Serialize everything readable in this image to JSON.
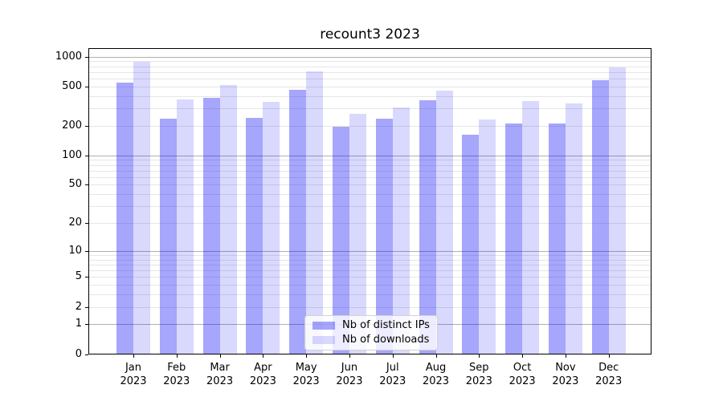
{
  "title": "recount3 2023",
  "chart_data": {
    "type": "bar",
    "title": "recount3 2023",
    "categories": [
      "Jan 2023",
      "Feb 2023",
      "Mar 2023",
      "Apr 2023",
      "May 2023",
      "Jun 2023",
      "Jul 2023",
      "Aug 2023",
      "Sep 2023",
      "Oct 2023",
      "Nov 2023",
      "Dec 2023"
    ],
    "x_tick_labels": [
      [
        "Jan",
        "2023"
      ],
      [
        "Feb",
        "2023"
      ],
      [
        "Mar",
        "2023"
      ],
      [
        "Apr",
        "2023"
      ],
      [
        "May",
        "2023"
      ],
      [
        "Jun",
        "2023"
      ],
      [
        "Jul",
        "2023"
      ],
      [
        "Aug",
        "2023"
      ],
      [
        "Sep",
        "2023"
      ],
      [
        "Oct",
        "2023"
      ],
      [
        "Nov",
        "2023"
      ],
      [
        "Dec",
        "2023"
      ]
    ],
    "series": [
      {
        "name": "Nb of distinct IPs",
        "color": "rgba(0,0,245,0.35)",
        "values": [
          550,
          237,
          381,
          242,
          458,
          196,
          237,
          361,
          162,
          212,
          212,
          574
        ]
      },
      {
        "name": "Nb of downloads",
        "color": "rgba(0,0,245,0.15)",
        "values": [
          880,
          367,
          515,
          349,
          713,
          266,
          309,
          450,
          233,
          353,
          338,
          778
        ]
      }
    ],
    "xlabel": "",
    "ylabel": "",
    "yscale": "symlog-like (position = log10(value+1))",
    "ylim": [
      0,
      1230
    ],
    "y_tick_labels": [
      "0",
      "1",
      "2",
      "5",
      "10",
      "20",
      "50",
      "100",
      "200",
      "500",
      "1000"
    ],
    "y_tick_values": [
      0,
      1,
      2,
      5,
      10,
      20,
      50,
      100,
      200,
      500,
      1000
    ],
    "y_major_gridlines": [
      1,
      10,
      100,
      1000
    ],
    "y_minor_gridlines": [
      2,
      3,
      4,
      5,
      6,
      7,
      8,
      9,
      20,
      30,
      40,
      50,
      60,
      70,
      80,
      90,
      200,
      300,
      400,
      500,
      600,
      700,
      800,
      900
    ],
    "grid": true,
    "legend_position": "lower center inside plot",
    "colors": {
      "bar_distinct_ips": "#a6a6f6",
      "bar_downloads": "#d9d9fa",
      "grid_major": "#b0b0b0",
      "grid_minor": "#e6e6e6",
      "spine": "#000000",
      "text": "#000000"
    }
  }
}
